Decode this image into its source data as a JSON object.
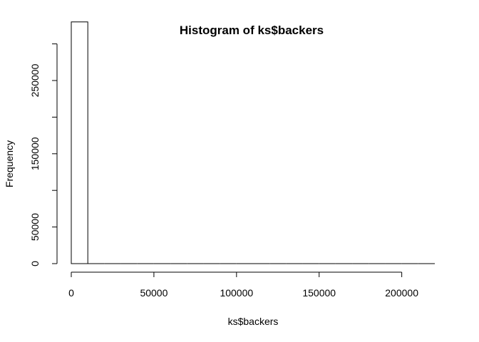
{
  "chart_data": {
    "type": "bar",
    "title": "Histogram of ks$backers",
    "xlabel": "ks$backers",
    "ylabel": "Frequency",
    "bins": [
      {
        "start": 0,
        "end": 10000,
        "count": 330000
      },
      {
        "start": 10000,
        "end": 20000,
        "count": 0
      },
      {
        "start": 20000,
        "end": 30000,
        "count": 0
      },
      {
        "start": 30000,
        "end": 40000,
        "count": 0
      },
      {
        "start": 40000,
        "end": 50000,
        "count": 0
      },
      {
        "start": 50000,
        "end": 60000,
        "count": 0
      },
      {
        "start": 60000,
        "end": 70000,
        "count": 0
      },
      {
        "start": 70000,
        "end": 80000,
        "count": 0
      },
      {
        "start": 80000,
        "end": 90000,
        "count": 0
      },
      {
        "start": 90000,
        "end": 100000,
        "count": 0
      },
      {
        "start": 100000,
        "end": 110000,
        "count": 0
      },
      {
        "start": 110000,
        "end": 120000,
        "count": 0
      },
      {
        "start": 120000,
        "end": 130000,
        "count": 0
      },
      {
        "start": 130000,
        "end": 140000,
        "count": 0
      },
      {
        "start": 140000,
        "end": 150000,
        "count": 0
      },
      {
        "start": 150000,
        "end": 160000,
        "count": 0
      },
      {
        "start": 160000,
        "end": 170000,
        "count": 0
      },
      {
        "start": 170000,
        "end": 180000,
        "count": 0
      },
      {
        "start": 180000,
        "end": 190000,
        "count": 0
      },
      {
        "start": 190000,
        "end": 200000,
        "count": 0
      },
      {
        "start": 200000,
        "end": 210000,
        "count": 0
      },
      {
        "start": 210000,
        "end": 220000,
        "count": 0
      }
    ],
    "x_ticks": [
      0,
      50000,
      100000,
      150000,
      200000
    ],
    "y_ticks": [
      0,
      50000,
      150000,
      250000
    ],
    "x_tick_labels": [
      "0",
      "50000",
      "100000",
      "150000",
      "200000"
    ],
    "y_tick_labels": [
      "0",
      "50000",
      "150000",
      "250000"
    ],
    "xlim": [
      0,
      220000
    ],
    "ylim": [
      0,
      330000
    ],
    "grid": false,
    "bar_fill": "#ffffff",
    "bar_stroke": "#000000"
  }
}
